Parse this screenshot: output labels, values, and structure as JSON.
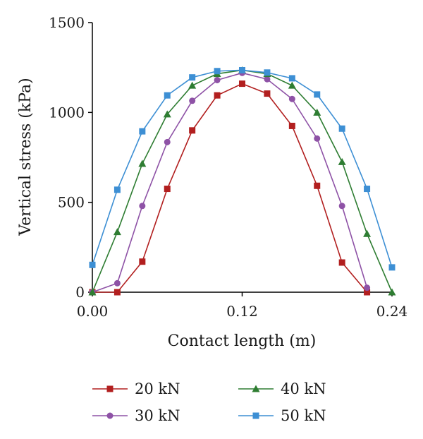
{
  "chart_data": {
    "type": "line",
    "title": "",
    "xlabel": "Contact length (m)",
    "ylabel": "Vertical stress (kPa)",
    "xlim": [
      0,
      0.24
    ],
    "ylim": [
      0,
      1500
    ],
    "x_ticks": [
      "0.00",
      "0.12",
      "0.24"
    ],
    "x_tick_values": [
      0,
      0.12,
      0.24
    ],
    "y_ticks": [
      "0",
      "500",
      "1000",
      "1500"
    ],
    "y_tick_values": [
      0,
      500,
      1000,
      1500
    ],
    "grid": false,
    "legend_position": "bottom",
    "series": [
      {
        "name": "20 kN",
        "color": "#b21f1f",
        "marker": "square",
        "x": [
          0,
          0.02,
          0.04,
          0.06,
          0.08,
          0.1,
          0.12,
          0.14,
          0.16,
          0.18,
          0.2,
          0.22
        ],
        "values": [
          0,
          0,
          170,
          575,
          900,
          1095,
          1160,
          1105,
          925,
          592,
          165,
          0
        ]
      },
      {
        "name": "30 kN",
        "color": "#8e52a6",
        "marker": "circle",
        "x": [
          0,
          0.02,
          0.04,
          0.06,
          0.08,
          0.1,
          0.12,
          0.14,
          0.16,
          0.18,
          0.2,
          0.22
        ],
        "values": [
          0,
          50,
          480,
          835,
          1065,
          1180,
          1220,
          1185,
          1075,
          855,
          480,
          25
        ]
      },
      {
        "name": "40 kN",
        "color": "#2e7d32",
        "marker": "triangle",
        "x": [
          0,
          0.02,
          0.04,
          0.06,
          0.08,
          0.1,
          0.12,
          0.14,
          0.16,
          0.18,
          0.2,
          0.22,
          0.24
        ],
        "values": [
          0,
          335,
          715,
          990,
          1150,
          1215,
          1235,
          1215,
          1150,
          1000,
          725,
          325,
          0
        ]
      },
      {
        "name": "50 kN",
        "color": "#3d8fd4",
        "marker": "square",
        "x": [
          0,
          0.02,
          0.04,
          0.06,
          0.08,
          0.1,
          0.12,
          0.14,
          0.16,
          0.18,
          0.2,
          0.22,
          0.24
        ],
        "values": [
          152,
          570,
          895,
          1095,
          1195,
          1230,
          1235,
          1222,
          1190,
          1100,
          910,
          575,
          138
        ]
      }
    ]
  }
}
